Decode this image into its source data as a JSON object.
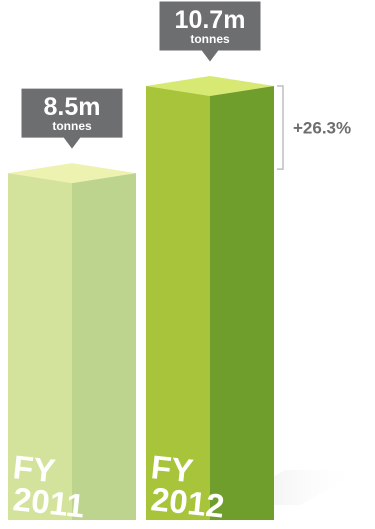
{
  "chart_data": {
    "type": "bar",
    "categories": [
      "FY 2011",
      "FY 2012"
    ],
    "values": [
      8.5,
      10.7
    ],
    "unit": "m tonnes",
    "ylim": [
      0,
      10.7
    ],
    "bars": [
      {
        "category_line1": "FY",
        "category_line2": "2011",
        "value_label": "8.5m",
        "unit_label": "tonnes",
        "colors": {
          "front": "#d4e39c",
          "side": "#bcd48e",
          "top": "#eef2b0"
        }
      },
      {
        "category_line1": "FY",
        "category_line2": "2012",
        "value_label": "10.7m",
        "unit_label": "tonnes",
        "colors": {
          "front": "#a7c43b",
          "side": "#6f9e2c",
          "top": "#d7e873"
        }
      }
    ],
    "change_label": "+26.3%",
    "grid": false,
    "legend": "none"
  },
  "colors": {
    "callout": "#6d6e70",
    "callout_border": "#ffffff",
    "bracket": "#bdbec0",
    "change_text": "#6d6e70",
    "shadow": "#e8e8e8"
  }
}
